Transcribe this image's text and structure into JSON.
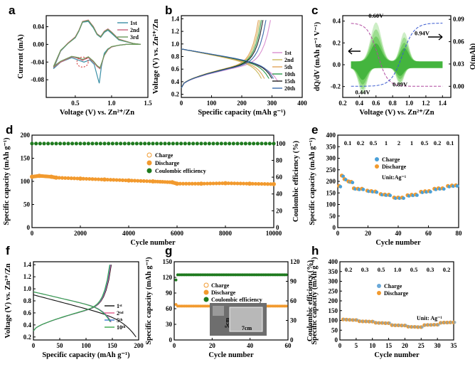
{
  "chart_data": [
    {
      "panel": "a",
      "type": "line",
      "xlabel": "Voltage (V) vs. Zn²⁺/Zn",
      "ylabel": "Current (mA)",
      "xlim": [
        0.1,
        1.5
      ],
      "ylim": [
        -0.12,
        0.065
      ],
      "xticks": [
        "0.5",
        "1.0",
        "1.5"
      ],
      "yticks": [
        "-0.08",
        "-0.04",
        "0.00",
        "0.04"
      ],
      "legend": [
        "1st",
        "2nd",
        "3rd"
      ],
      "colors": [
        "#3a8fa6",
        "#c9607a",
        "#6a9a5a"
      ],
      "series": [
        {
          "name": "1st",
          "x": [
            0.2,
            0.3,
            0.45,
            0.55,
            0.62,
            0.7,
            0.76,
            0.8,
            0.83,
            0.86,
            0.9,
            0.95,
            1.0,
            1.1,
            1.2,
            1.3,
            1.4,
            1.3,
            1.1,
            1.0,
            0.95,
            0.9,
            0.85,
            0.8,
            0.75,
            0.68,
            0.6,
            0.55,
            0.5,
            0.4,
            0.3,
            0.2
          ],
          "y": [
            -0.055,
            -0.04,
            -0.03,
            -0.036,
            -0.04,
            -0.035,
            -0.045,
            -0.07,
            -0.088,
            -0.05,
            -0.02,
            -0.01,
            -0.006,
            -0.002,
            0.0,
            0.0,
            0.0,
            0.002,
            0.01,
            0.025,
            0.032,
            0.027,
            0.016,
            0.022,
            0.037,
            0.052,
            0.05,
            0.03,
            0.015,
            0.002,
            -0.015,
            -0.055
          ]
        },
        {
          "name": "2nd",
          "x": [
            0.2,
            0.3,
            0.45,
            0.55,
            0.6,
            0.68,
            0.75,
            0.8,
            0.84,
            0.9,
            0.95,
            1.0,
            1.1,
            1.2,
            1.3,
            1.4,
            1.3,
            1.1,
            1.0,
            0.95,
            0.9,
            0.85,
            0.8,
            0.75,
            0.68,
            0.6,
            0.55,
            0.5,
            0.4,
            0.3,
            0.2
          ],
          "y": [
            -0.052,
            -0.04,
            -0.028,
            -0.032,
            -0.036,
            -0.03,
            -0.04,
            -0.05,
            -0.055,
            -0.025,
            -0.012,
            -0.006,
            -0.002,
            0.0,
            0.0,
            0.0,
            0.002,
            0.012,
            0.028,
            0.035,
            0.03,
            0.018,
            0.024,
            0.04,
            0.055,
            0.052,
            0.032,
            0.017,
            0.003,
            -0.014,
            -0.052
          ]
        },
        {
          "name": "3rd",
          "x": [
            0.2,
            0.3,
            0.45,
            0.55,
            0.6,
            0.68,
            0.75,
            0.8,
            0.84,
            0.9,
            0.95,
            1.0,
            1.1,
            1.2,
            1.3,
            1.4,
            1.3,
            1.1,
            1.0,
            0.95,
            0.9,
            0.85,
            0.8,
            0.75,
            0.68,
            0.6,
            0.55,
            0.5,
            0.4,
            0.3,
            0.2
          ],
          "y": [
            -0.05,
            -0.038,
            -0.027,
            -0.03,
            -0.034,
            -0.028,
            -0.038,
            -0.048,
            -0.053,
            -0.024,
            -0.011,
            -0.005,
            -0.002,
            0.0,
            0.0,
            0.0,
            0.002,
            0.011,
            0.027,
            0.034,
            0.029,
            0.017,
            0.023,
            0.039,
            0.054,
            0.051,
            0.031,
            0.016,
            0.002,
            -0.013,
            -0.05
          ]
        }
      ]
    },
    {
      "panel": "b",
      "type": "line",
      "xlabel": "Specific capacity (mAh g⁻¹)",
      "ylabel": "Voltage (V) vs. Zn²⁺/Zn",
      "xlim": [
        0,
        400
      ],
      "ylim": [
        0.15,
        1.45
      ],
      "xticks": [
        "0",
        "100",
        "200",
        "300",
        "400"
      ],
      "yticks": [
        "0.2",
        "0.4",
        "0.6",
        "0.8",
        "1.0",
        "1.2",
        "1.4"
      ],
      "legend": [
        "1st",
        "2nd",
        "5th",
        "10th",
        "15th",
        "20th"
      ],
      "colors": [
        "#d98fd0",
        "#c9b85a",
        "#e2a45a",
        "#2a9a4a",
        "#222222",
        "#3a6aaa"
      ],
      "discharge_end": [
        320,
        265,
        275,
        290,
        300,
        305
      ],
      "charge_end": [
        295,
        260,
        255,
        265,
        270,
        280
      ]
    },
    {
      "panel": "c",
      "type": "area",
      "xlabel": "Voltage (V) vs. Zn²⁺/Zn",
      "ylabel": "dQ/dV (mAh g⁻¹ V⁻¹)",
      "y2label": "Q(mAh)",
      "xlim": [
        0.2,
        1.5
      ],
      "ylim": [
        -0.3,
        0.45
      ],
      "y2lim": [
        -0.015,
        0.095
      ],
      "xticks": [
        "0.2",
        "0.4",
        "0.6",
        "0.8",
        "1.0",
        "1.2",
        "1.4"
      ],
      "yticks": [
        "-0.2",
        "0.0",
        "0.2",
        "0.4"
      ],
      "y2ticks": [
        "0.00",
        "0.03",
        "0.06",
        "0.09"
      ],
      "annotations": [
        "0.60V",
        "0.94V",
        "0.44V",
        "0.89V"
      ]
    },
    {
      "panel": "d",
      "type": "scatter",
      "xlabel": "Cycle number",
      "ylabel": "Specific capacity (mAh g⁻¹)",
      "y2label": "Coulombic efficiency (%)",
      "xlim": [
        0,
        10000
      ],
      "ylim": [
        0,
        200
      ],
      "y2lim": [
        0,
        110
      ],
      "xticks": [
        "0",
        "2000",
        "4000",
        "6000",
        "8000",
        "10000"
      ],
      "yticks": [
        "0",
        "50",
        "100",
        "150",
        "200"
      ],
      "y2ticks": [
        "0",
        "20",
        "40",
        "60",
        "80",
        "100"
      ],
      "legend": [
        "Charge",
        "Discharge",
        "Coulombic efficiency"
      ],
      "capacity": {
        "x": [
          0,
          300,
          800,
          1000,
          2000,
          3000,
          4000,
          5000,
          5800,
          6000,
          7000,
          8000,
          9000,
          10000
        ],
        "y": [
          110,
          112,
          110,
          108,
          106,
          104,
          102,
          100,
          98,
          95,
          95,
          96,
          95,
          94
        ]
      },
      "efficiency": 100
    },
    {
      "panel": "e",
      "type": "scatter",
      "xlabel": "Cycle number",
      "ylabel": "Specific capacity (mAh g⁻¹)",
      "xlim": [
        0,
        90
      ],
      "ylim": [
        0,
        400
      ],
      "xticks": [
        "0",
        "20",
        "40",
        "60",
        "80"
      ],
      "yticks": [
        "0",
        "50",
        "100",
        "150",
        "200",
        "250",
        "300",
        "350",
        "400"
      ],
      "legend": [
        "Charge",
        "Discharge"
      ],
      "unit": "Unit:Ag⁻¹",
      "rates": [
        "0.1",
        "0.2",
        "0.5",
        "1",
        "2",
        "1",
        "0.5",
        "0.2",
        "0.1"
      ],
      "capacity": {
        "x": [
          1,
          3,
          5,
          8,
          10,
          12,
          15,
          18,
          22,
          25,
          28,
          32,
          35,
          38,
          42,
          45,
          48,
          52,
          55,
          58,
          62,
          65,
          68,
          72,
          75,
          78,
          82,
          85,
          88
        ],
        "y": [
          180,
          225,
          210,
          200,
          198,
          170,
          168,
          168,
          160,
          158,
          156,
          145,
          143,
          142,
          130,
          130,
          130,
          140,
          142,
          143,
          155,
          157,
          158,
          168,
          170,
          170,
          180,
          182,
          183
        ]
      }
    },
    {
      "panel": "f",
      "type": "line",
      "xlabel": "Specific capacity (mAh g⁻¹)",
      "ylabel": "Voltage (V) vs. Zn²⁺/Zn",
      "xlim": [
        0,
        200
      ],
      "ylim": [
        0.15,
        1.45
      ],
      "xticks": [
        "0",
        "50",
        "100",
        "150",
        "200"
      ],
      "yticks": [
        "0.2",
        "0.4",
        "0.6",
        "0.8",
        "1.0",
        "1.2",
        "1.4"
      ],
      "legend": [
        "1st",
        "2nd",
        "5th",
        "10th"
      ],
      "legend_base": [
        "1",
        "2",
        "5",
        "10"
      ],
      "legend_sup": [
        "st",
        "nd",
        "th",
        "th"
      ],
      "colors": [
        "#111111",
        "#e05a8a",
        "#3a7ad0",
        "#3aa84a"
      ],
      "discharge_end": [
        195,
        148,
        147,
        146
      ],
      "charge_end": [
        148,
        147,
        146,
        145
      ]
    },
    {
      "panel": "g",
      "type": "scatter",
      "xlabel": "Cycle number",
      "ylabel": "Specific capacity (mAh g⁻¹)",
      "y2label": "Coulombic efficiency (%)",
      "xlim": [
        0,
        65
      ],
      "ylim": [
        0,
        150
      ],
      "y2lim": [
        0,
        120
      ],
      "xticks": [
        "0",
        "20",
        "40",
        "60"
      ],
      "yticks": [
        "0",
        "30",
        "60",
        "90",
        "120",
        "150"
      ],
      "y2ticks": [
        "0",
        "30",
        "60",
        "90",
        "120"
      ],
      "legend": [
        "Charge",
        "Discharge",
        "Coulombic efficiency"
      ],
      "capacity": 65,
      "efficiency": 100,
      "inset_labels": [
        "5cm",
        "7cm"
      ]
    },
    {
      "panel": "h",
      "type": "scatter",
      "xlabel": "Cycle number",
      "ylabel": "Specific capacity (mAh g⁻¹)",
      "xlim": [
        0,
        35
      ],
      "ylim": [
        0,
        400
      ],
      "xticks": [
        "0",
        "5",
        "10",
        "15",
        "20",
        "25",
        "30",
        "35"
      ],
      "yticks": [
        "0",
        "50",
        "100",
        "150",
        "200",
        "250",
        "300",
        "350",
        "400"
      ],
      "legend": [
        "Charge",
        "Discharge"
      ],
      "unit": "Unit: Ag⁻¹",
      "rates": [
        "0.2",
        "0.3",
        "0.5",
        "1.0",
        "0.5",
        "0.3",
        "0.2"
      ],
      "capacity": {
        "x": [
          1,
          2,
          3,
          4,
          5,
          6,
          7,
          8,
          9,
          10,
          11,
          12,
          13,
          14,
          15,
          16,
          17,
          18,
          19,
          20,
          21,
          22,
          23,
          24,
          25,
          26,
          27,
          28,
          29,
          30,
          31,
          32,
          33,
          34,
          35
        ],
        "y": [
          105,
          104,
          103,
          102,
          102,
          96,
          95,
          95,
          94,
          94,
          88,
          87,
          87,
          86,
          86,
          76,
          75,
          75,
          74,
          74,
          68,
          67,
          67,
          66,
          66,
          76,
          77,
          77,
          78,
          78,
          88,
          89,
          89,
          90,
          90
        ]
      }
    }
  ]
}
